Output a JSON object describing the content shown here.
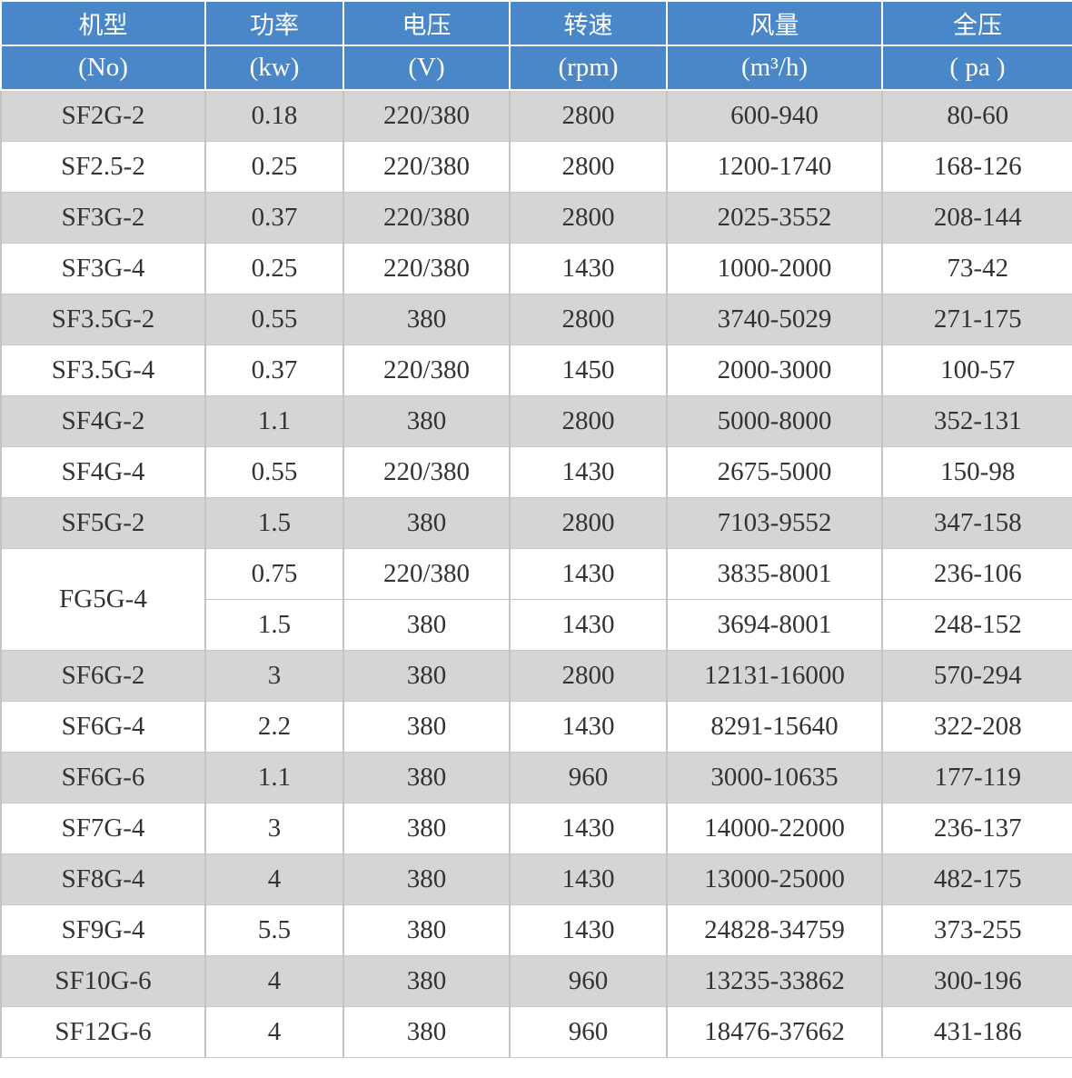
{
  "header": {
    "columns": [
      {
        "label": "机型",
        "unit": "(No)"
      },
      {
        "label": "功率",
        "unit": "(kw)"
      },
      {
        "label": "电压",
        "unit": "(V)"
      },
      {
        "label": "转速",
        "unit": "(rpm)"
      },
      {
        "label": "风量",
        "unit": "(m³/h)"
      },
      {
        "label": "全压",
        "unit": "( pa )"
      }
    ]
  },
  "colors": {
    "header_bg": "#4a87c8",
    "shaded_row": "#d4d5d7"
  },
  "groups": [
    {
      "model": "SF2G-2",
      "rows": [
        [
          "0.18",
          "220/380",
          "2800",
          "600-940",
          "80-60"
        ]
      ]
    },
    {
      "model": "SF2.5-2",
      "rows": [
        [
          "0.25",
          "220/380",
          "2800",
          "1200-1740",
          "168-126"
        ]
      ]
    },
    {
      "model": "SF3G-2",
      "rows": [
        [
          "0.37",
          "220/380",
          "2800",
          "2025-3552",
          "208-144"
        ]
      ]
    },
    {
      "model": "SF3G-4",
      "rows": [
        [
          "0.25",
          "220/380",
          "1430",
          "1000-2000",
          "73-42"
        ]
      ]
    },
    {
      "model": "SF3.5G-2",
      "rows": [
        [
          "0.55",
          "380",
          "2800",
          "3740-5029",
          "271-175"
        ]
      ]
    },
    {
      "model": "SF3.5G-4",
      "rows": [
        [
          "0.37",
          "220/380",
          "1450",
          "2000-3000",
          "100-57"
        ]
      ]
    },
    {
      "model": "SF4G-2",
      "rows": [
        [
          "1.1",
          "380",
          "2800",
          "5000-8000",
          "352-131"
        ]
      ]
    },
    {
      "model": "SF4G-4",
      "rows": [
        [
          "0.55",
          "220/380",
          "1430",
          "2675-5000",
          "150-98"
        ]
      ]
    },
    {
      "model": "SF5G-2",
      "rows": [
        [
          "1.5",
          "380",
          "2800",
          "7103-9552",
          "347-158"
        ]
      ]
    },
    {
      "model": "FG5G-4",
      "rows": [
        [
          "0.75",
          "220/380",
          "1430",
          "3835-8001",
          "236-106"
        ],
        [
          "1.5",
          "380",
          "1430",
          "3694-8001",
          "248-152"
        ]
      ]
    },
    {
      "model": "SF6G-2",
      "rows": [
        [
          "3",
          "380",
          "2800",
          "12131-16000",
          "570-294"
        ]
      ]
    },
    {
      "model": "SF6G-4",
      "rows": [
        [
          "2.2",
          "380",
          "1430",
          "8291-15640",
          "322-208"
        ]
      ]
    },
    {
      "model": "SF6G-6",
      "rows": [
        [
          "1.1",
          "380",
          "960",
          "3000-10635",
          "177-119"
        ]
      ]
    },
    {
      "model": "SF7G-4",
      "rows": [
        [
          "3",
          "380",
          "1430",
          "14000-22000",
          "236-137"
        ]
      ]
    },
    {
      "model": "SF8G-4",
      "rows": [
        [
          "4",
          "380",
          "1430",
          "13000-25000",
          "482-175"
        ]
      ]
    },
    {
      "model": "SF9G-4",
      "rows": [
        [
          "5.5",
          "380",
          "1430",
          "24828-34759",
          "373-255"
        ]
      ]
    },
    {
      "model": "SF10G-6",
      "rows": [
        [
          "4",
          "380",
          "960",
          "13235-33862",
          "300-196"
        ]
      ]
    },
    {
      "model": "SF12G-6",
      "rows": [
        [
          "4",
          "380",
          "960",
          "18476-37662",
          "431-186"
        ]
      ]
    }
  ]
}
